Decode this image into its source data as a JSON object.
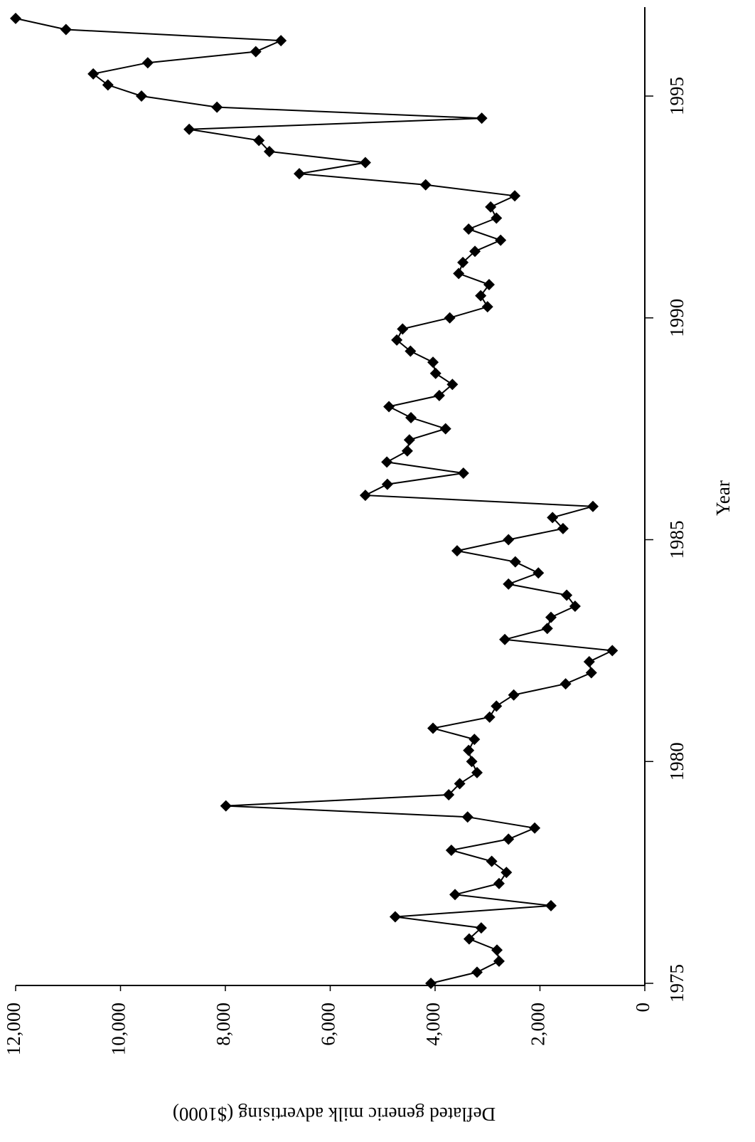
{
  "chart_data": {
    "type": "line",
    "xlabel": "Year",
    "ylabel": "Deflated generic milk advertising ($1000)",
    "x": [
      1975,
      1975.25,
      1975.5,
      1975.75,
      1976,
      1976.25,
      1976.5,
      1976.75,
      1977,
      1977.25,
      1977.5,
      1977.75,
      1978,
      1978.25,
      1978.5,
      1978.75,
      1979,
      1979.25,
      1979.5,
      1979.75,
      1980,
      1980.25,
      1980.5,
      1980.75,
      1981,
      1981.25,
      1981.5,
      1981.75,
      1982,
      1982.25,
      1982.5,
      1982.75,
      1983,
      1983.25,
      1983.5,
      1983.75,
      1984,
      1984.25,
      1984.5,
      1984.75,
      1985,
      1985.25,
      1985.5,
      1985.75,
      1986,
      1986.25,
      1986.5,
      1986.75,
      1987,
      1987.25,
      1987.5,
      1987.75,
      1988,
      1988.25,
      1988.5,
      1988.75,
      1989,
      1989.25,
      1989.5,
      1989.75,
      1990,
      1990.25,
      1990.5,
      1990.75,
      1991,
      1991.25,
      1991.5,
      1991.75,
      1992,
      1992.25,
      1992.5,
      1992.75,
      1993,
      1993.25,
      1993.5,
      1993.75,
      1994,
      1994.25,
      1994.5,
      1994.75,
      1995,
      1995.25,
      1995.5,
      1995.75,
      1996,
      1996.25,
      1996.5,
      1996.75
    ],
    "series": [
      {
        "name": "Deflated generic milk advertising",
        "color": "#000000",
        "values": [
          4080,
          3200,
          2780,
          2820,
          3350,
          3120,
          4760,
          1790,
          3620,
          2780,
          2640,
          2920,
          3690,
          2600,
          2100,
          3380,
          7990,
          3740,
          3530,
          3200,
          3300,
          3360,
          3250,
          4040,
          2960,
          2830,
          2500,
          1510,
          1020,
          1060,
          620,
          2670,
          1860,
          1790,
          1330,
          1490,
          2600,
          2030,
          2470,
          3580,
          2600,
          1560,
          1760,
          990,
          5330,
          4910,
          3460,
          4920,
          4530,
          4490,
          3800,
          4460,
          4880,
          3920,
          3670,
          3990,
          4040,
          4470,
          4730,
          4620,
          3720,
          3000,
          3130,
          2970,
          3550,
          3470,
          3240,
          2750,
          3360,
          2830,
          2940,
          2480,
          4180,
          6590,
          5330,
          7160,
          7360,
          8690,
          3110,
          8160,
          9600,
          10240,
          10520,
          9480,
          7420,
          6940,
          11040,
          12000
        ]
      }
    ],
    "xlim": [
      1975,
      1997
    ],
    "xticks": [
      1975,
      1980,
      1985,
      1990,
      1995
    ],
    "ylim": [
      0,
      12000
    ],
    "yticks": [
      0,
      {
        "value": 2000,
        "label": "2,000"
      },
      {
        "value": 4000,
        "label": "4,000"
      },
      {
        "value": 6000,
        "label": "6,000"
      },
      {
        "value": 8000,
        "label": "8,000"
      },
      {
        "value": 10000,
        "label": "10,000"
      },
      {
        "value": 12000,
        "label": "12,000"
      }
    ]
  }
}
